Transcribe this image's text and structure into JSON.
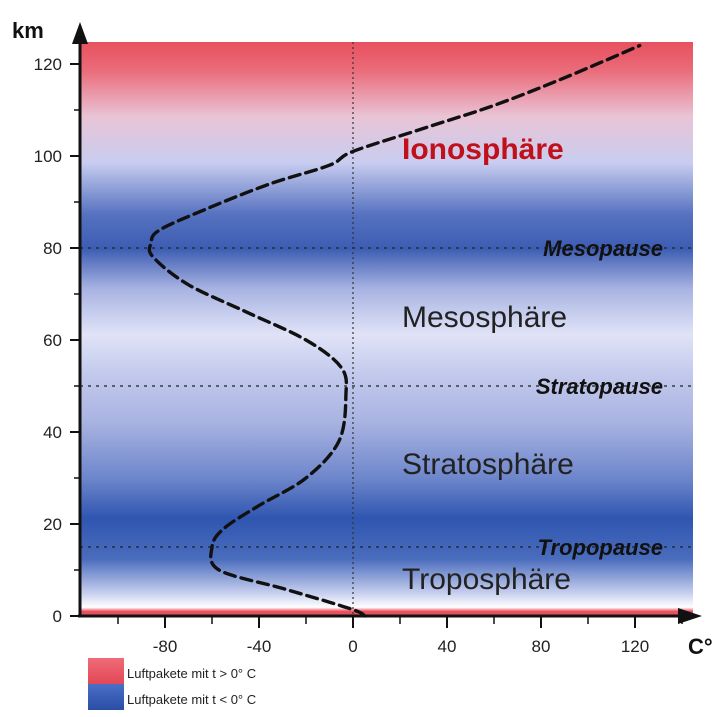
{
  "chart_data": {
    "type": "line",
    "x_unit": "C°",
    "y_unit": "km",
    "xlim": [
      -120,
      140
    ],
    "ylim": [
      0,
      124
    ],
    "x_ticks": [
      -80,
      -40,
      0,
      40,
      80,
      120
    ],
    "y_ticks": [
      0,
      20,
      40,
      60,
      80,
      100,
      120
    ],
    "series": [
      {
        "x": [
          5,
          2,
          -10,
          -30,
          -57,
          -60,
          -55,
          -40,
          -20,
          -6,
          -3,
          -5,
          -20,
          -45,
          -70,
          -85,
          -86,
          -82,
          -60,
          -35,
          -10,
          0,
          30,
          60,
          90,
          122
        ],
        "y": [
          0,
          1,
          3,
          6,
          10,
          15,
          19,
          24,
          30,
          38,
          48,
          54,
          60,
          66,
          72,
          78,
          81,
          84,
          89,
          94,
          98,
          101,
          106,
          111,
          117,
          124
        ]
      }
    ],
    "layers": [
      {
        "name": "Troposphäre",
        "y": 8
      },
      {
        "name": "Stratosphäre",
        "y": 33
      },
      {
        "name": "Mesosphäre",
        "y": 65
      },
      {
        "name": "Ionosphäre",
        "y": 101.5
      }
    ],
    "pauses": [
      {
        "name": "Tropopause",
        "y": 15
      },
      {
        "name": "Stratopause",
        "y": 50
      },
      {
        "name": "Mesopause",
        "y": 80
      }
    ],
    "legend": [
      {
        "label": "Luftpakete mit t > 0° C",
        "color": "#e8505e"
      },
      {
        "label": "Luftpakete mit t < 0° C",
        "color": "#2f56b0"
      }
    ],
    "colors": {
      "warm": "#e8505e",
      "cold": "#2f56b0",
      "pale": "#dcdff5",
      "ionosphere_text": "#c0101a"
    }
  }
}
